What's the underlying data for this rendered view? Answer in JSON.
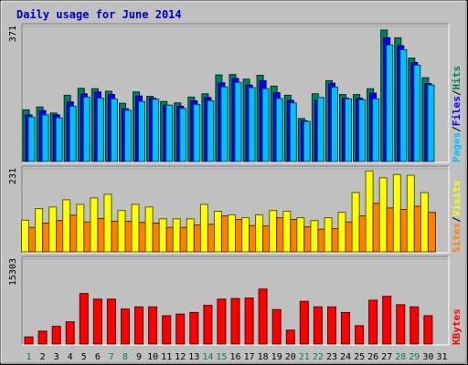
{
  "chart_data": {
    "type": "bar",
    "title": "Daily usage for June 2014",
    "x": [
      1,
      2,
      3,
      4,
      5,
      6,
      7,
      8,
      9,
      10,
      11,
      12,
      13,
      14,
      15,
      16,
      17,
      18,
      19,
      20,
      21,
      22,
      23,
      24,
      25,
      26,
      27,
      28,
      29,
      30,
      31
    ],
    "x_labels": [
      "1",
      "2",
      "3",
      "4",
      "5",
      "6",
      "7",
      "8",
      "9",
      "10",
      "11",
      "12",
      "13",
      "14",
      "15",
      "16",
      "17",
      "18",
      "19",
      "20",
      "21",
      "22",
      "23",
      "24",
      "25",
      "26",
      "27",
      "28",
      "29",
      "30",
      "31"
    ],
    "weekend_days": [
      1,
      7,
      8,
      14,
      15,
      21,
      22,
      28,
      29
    ],
    "panels": [
      {
        "id": "hits-files-pages",
        "ymax": 371,
        "ymax_label": "371",
        "series": [
          {
            "name": "Hits",
            "color": "#00805c",
            "values": [
              142,
              150,
              133,
              182,
              201,
              200,
              193,
              160,
              191,
              179,
              165,
              161,
              177,
              186,
              238,
              239,
              226,
              237,
              207,
              182,
              118,
              186,
              222,
              184,
              184,
              200,
              361,
              340,
              284,
              230,
              0
            ]
          },
          {
            "name": "Files",
            "color": "#0000ff",
            "values": [
              128,
              140,
              128,
              164,
              186,
              191,
              184,
              145,
              180,
              174,
              155,
              152,
              167,
              176,
              216,
              228,
              210,
              222,
              189,
              168,
              112,
              168,
              215,
              174,
              174,
              188,
              340,
              318,
              272,
              214,
              0
            ]
          },
          {
            "name": "Pages",
            "color": "#00c0ff",
            "values": [
              122,
              128,
              120,
              152,
              177,
              174,
              172,
              141,
              165,
              171,
              155,
              146,
              157,
              167,
              205,
              217,
              203,
              200,
              173,
              161,
              110,
              176,
              204,
              172,
              170,
              172,
              320,
              307,
              265,
              210,
              0
            ]
          }
        ],
        "vertical_label": [
          "Pages",
          "Files",
          "Hits"
        ]
      },
      {
        "id": "visits-sites",
        "ymax": 231,
        "ymax_label": "231",
        "series": [
          {
            "name": "Visits",
            "color": "#ffff00",
            "values": [
              88,
              120,
              125,
              145,
              132,
              150,
              160,
              115,
              132,
              125,
              92,
              92,
              92,
              132,
              113,
              103,
              95,
              103,
              115,
              113,
              95,
              87,
              95,
              110,
              165,
              225,
              206,
              215,
              213,
              165,
              0
            ]
          },
          {
            "name": "Sites",
            "color": "#ff8000",
            "values": [
              68,
              80,
              87,
              102,
              83,
              93,
              85,
              85,
              82,
              80,
              68,
              68,
              75,
              77,
              100,
              90,
              73,
              72,
              95,
              90,
              70,
              63,
              65,
              83,
              100,
              135,
              122,
              118,
              127,
              110,
              0
            ]
          }
        ],
        "vertical_label": [
          "Sites",
          "Visits"
        ]
      },
      {
        "id": "kbytes",
        "ymax": 15303,
        "ymax_label": "15303",
        "series": [
          {
            "name": "KBytes",
            "color": "#ff0000",
            "values": [
              1280,
              2320,
              3200,
              4000,
              9100,
              8100,
              8100,
              6300,
              6700,
              6700,
              5100,
              5400,
              5700,
              7000,
              8100,
              8200,
              8300,
              9900,
              6200,
              2500,
              7700,
              6700,
              6700,
              5700,
              3300,
              7900,
              8600,
              7100,
              6700,
              5100,
              0
            ]
          }
        ],
        "vertical_label": [
          "KBytes"
        ]
      }
    ]
  }
}
